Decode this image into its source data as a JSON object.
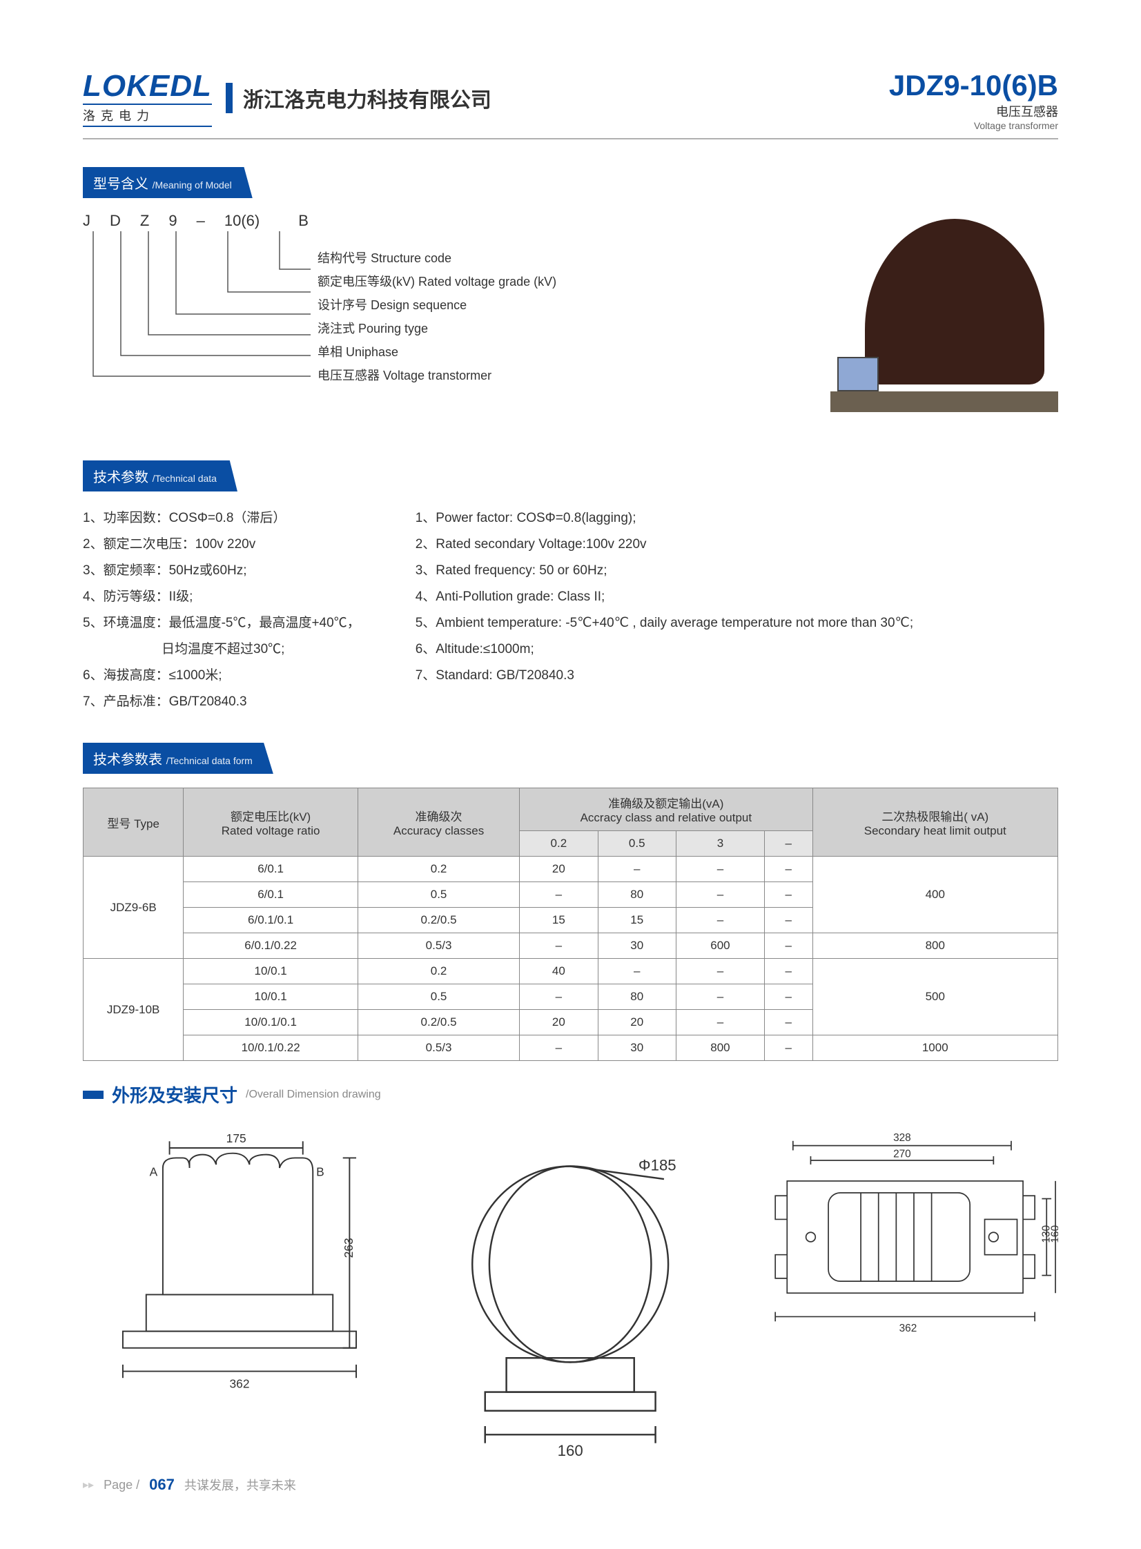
{
  "header": {
    "logo": "LOKEDL",
    "logo_sub": "洛克电力",
    "company": "浙江洛克电力科技有限公司",
    "product": "JDZ9-10(6)B",
    "product_sub_cn": "电压互感器",
    "product_sub_en": "Voltage transformer"
  },
  "sect_model": {
    "cn": "型号含义",
    "en": "/Meaning of Model"
  },
  "model_letters": [
    "J",
    "D",
    "Z",
    "9",
    "–",
    "10(6)",
    "",
    "B"
  ],
  "model_labels": [
    "结构代号  Structure code",
    "额定电压等级(kV)  Rated voltage grade (kV)",
    "设计序号  Design sequence",
    "浇注式  Pouring tyge",
    "单相  Uniphase",
    "电压互感器  Voltage transtormer"
  ],
  "sect_tech": {
    "cn": "技术参数",
    "en": "/Technical data"
  },
  "tech_cn": [
    "1、功率因数：COSΦ=0.8（滞后）",
    "2、额定二次电压：100v 220v",
    "3、额定频率：50Hz或60Hz;",
    "4、防污等级：II级;",
    "5、环境温度：最低温度-5℃，最高温度+40℃，\n　　　　　　日均温度不超过30℃;",
    "6、海拔高度：≤1000米;",
    "7、产品标准：GB/T20840.3"
  ],
  "tech_en": [
    "1、Power factor: COSΦ=0.8(lagging);",
    "2、Rated secondary Voltage:100v 220v",
    "3、Rated frequency: 50 or 60Hz;",
    "4、Anti-Pollution grade: Class II;",
    "5、Ambient temperature: -5℃+40℃ , daily average temperature not more than 30℃;",
    "6、Altitude:≤1000m;",
    "7、Standard: GB/T20840.3"
  ],
  "sect_table": {
    "cn": "技术参数表",
    "en": "/Technical data form"
  },
  "table": {
    "head_type": "型号 Type",
    "head_ratio": "额定电压比(kV)\nRated voltage ratio",
    "head_acc": "准确级次\nAccuracy classes",
    "head_out": "准确级及额定输出(vA)\nAccracy class and relative output",
    "head_sec": "二次热极限输出( vA)\nSecondary heat limit output",
    "sub": [
      "0.2",
      "0.5",
      "3",
      "–"
    ],
    "rows": [
      {
        "t": "JDZ9-6B",
        "r": "6/0.1",
        "a": "0.2",
        "c": [
          "20",
          "–",
          "–",
          "–"
        ],
        "s": "400",
        "span_s": 3,
        "span_t": 4
      },
      {
        "r": "6/0.1",
        "a": "0.5",
        "c": [
          "–",
          "80",
          "–",
          "–"
        ]
      },
      {
        "r": "6/0.1/0.1",
        "a": "0.2/0.5",
        "c": [
          "15",
          "15",
          "–",
          "–"
        ]
      },
      {
        "r": "6/0.1/0.22",
        "a": "0.5/3",
        "c": [
          "–",
          "30",
          "600",
          "–"
        ],
        "s": "800",
        "span_s": 1
      },
      {
        "t": "JDZ9-10B",
        "r": "10/0.1",
        "a": "0.2",
        "c": [
          "40",
          "–",
          "–",
          "–"
        ],
        "s": "500",
        "span_s": 3,
        "span_t": 4
      },
      {
        "r": "10/0.1",
        "a": "0.5",
        "c": [
          "–",
          "80",
          "–",
          "–"
        ]
      },
      {
        "r": "10/0.1/0.1",
        "a": "0.2/0.5",
        "c": [
          "20",
          "20",
          "–",
          "–"
        ]
      },
      {
        "r": "10/0.1/0.22",
        "a": "0.5/3",
        "c": [
          "–",
          "30",
          "800",
          "–"
        ],
        "s": "1000",
        "span_s": 1
      }
    ]
  },
  "sect_drawing": {
    "cn": "外形及安装尺寸",
    "en": "/Overall Dimension drawing"
  },
  "dims": {
    "d1_top": "175",
    "d1_h": "263",
    "d1_w": "362",
    "d1_a": "A",
    "d1_b": "B",
    "d2_phi": "Φ185",
    "d2_w": "160",
    "d3_w1": "328",
    "d3_w2": "270",
    "d3_h1": "130",
    "d3_h2": "160",
    "d3_w": "362"
  },
  "footer": {
    "chev": "▸▸",
    "page_lbl": "Page /",
    "page_no": "067",
    "motto": "共谋发展，共享未来"
  },
  "colors": {
    "brand": "#0a4ea3",
    "line": "#555555",
    "table_head": "#d0d0d0"
  }
}
